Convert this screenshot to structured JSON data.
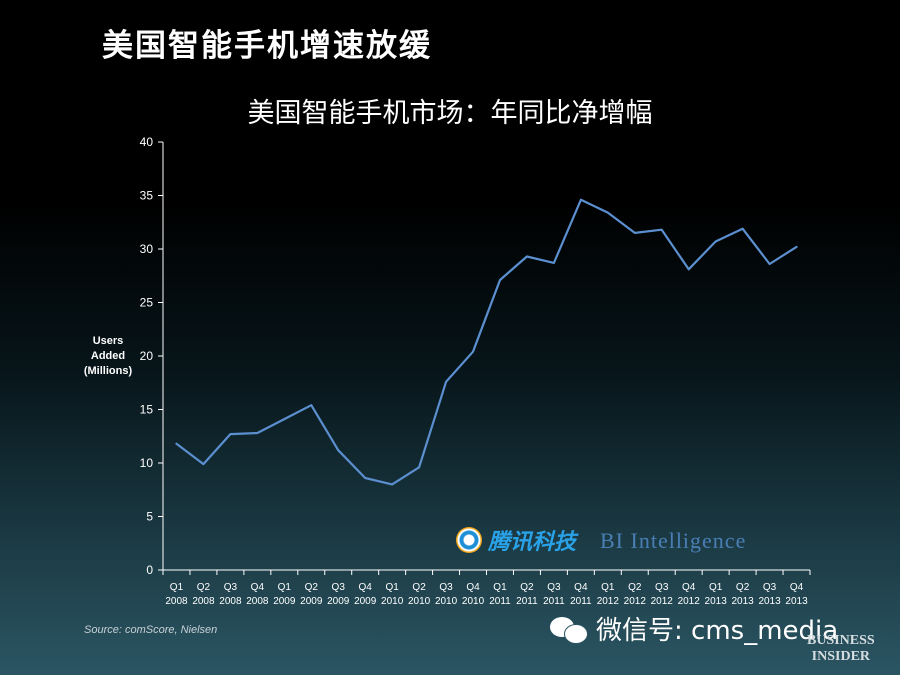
{
  "headline": "美国智能手机增速放缓",
  "chart_data": {
    "type": "line",
    "title": "美国智能手机市场：年同比净增幅",
    "ylabel_lines": [
      "Users",
      "Added",
      "(Millions)"
    ],
    "xlabel": "",
    "ylim": [
      0,
      40
    ],
    "yticks": [
      0,
      5,
      10,
      15,
      20,
      25,
      30,
      35,
      40
    ],
    "grid": false,
    "categories": [
      "Q1 2008",
      "Q2 2008",
      "Q3 2008",
      "Q4 2008",
      "Q1 2009",
      "Q2 2009",
      "Q3 2009",
      "Q4 2009",
      "Q1 2010",
      "Q2 2010",
      "Q3 2010",
      "Q4 2010",
      "Q1 2011",
      "Q2 2011",
      "Q3 2011",
      "Q4 2011",
      "Q1 2012",
      "Q2 2012",
      "Q3 2012",
      "Q4 2012",
      "Q1 2013",
      "Q2 2013",
      "Q3 2013",
      "Q4 2013"
    ],
    "category_quarters": [
      "Q1",
      "Q2",
      "Q3",
      "Q4",
      "Q1",
      "Q2",
      "Q3",
      "Q4",
      "Q1",
      "Q2",
      "Q3",
      "Q4",
      "Q1",
      "Q2",
      "Q3",
      "Q4",
      "Q1",
      "Q2",
      "Q3",
      "Q4",
      "Q1",
      "Q2",
      "Q3",
      "Q4"
    ],
    "category_years": [
      "2008",
      "2008",
      "2008",
      "2008",
      "2009",
      "2009",
      "2009",
      "2009",
      "2010",
      "2010",
      "2010",
      "2010",
      "2011",
      "2011",
      "2011",
      "2011",
      "2012",
      "2012",
      "2012",
      "2012",
      "2013",
      "2013",
      "2013",
      "2013"
    ],
    "series": [
      {
        "values": [
          11.8,
          9.9,
          12.7,
          12.8,
          14.1,
          15.4,
          11.2,
          8.6,
          8.0,
          9.6,
          17.6,
          20.4,
          27.1,
          29.3,
          28.7,
          34.6,
          33.4,
          31.5,
          31.8,
          28.1,
          30.7,
          31.9,
          28.6,
          30.2
        ]
      }
    ],
    "line_color": "#5b8fcf",
    "axis_color": "#ffffff"
  },
  "source": "Source: comScore, Nielsen",
  "watermarks": {
    "tencent": "腾讯科技",
    "bi_intelligence": "BI Intelligence",
    "wechat": "微信号: cms_media",
    "business_insider_line1": "BUSINESS",
    "business_insider_line2": "INSIDER"
  }
}
